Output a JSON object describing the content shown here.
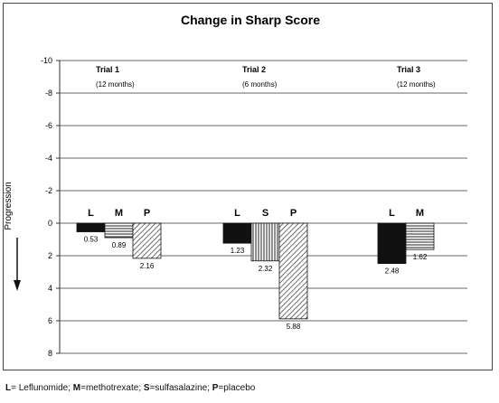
{
  "chart_data": {
    "type": "bar",
    "title": "Change in Sharp Score",
    "ylabel": "Progression",
    "ylim": [
      -10,
      8
    ],
    "y_ticks": [
      -10,
      -8,
      -6,
      -4,
      -2,
      0,
      2,
      4,
      6,
      8
    ],
    "y_inverted": true,
    "grid": true,
    "trials": [
      {
        "name": "Trial 1",
        "duration": "(12 months)",
        "bars": [
          {
            "label": "L",
            "value": 0.53,
            "value_label": "0.53",
            "fill": "solid-black"
          },
          {
            "label": "M",
            "value": 0.89,
            "value_label": "0.89",
            "fill": "horizontal-stripes"
          },
          {
            "label": "P",
            "value": 2.16,
            "value_label": "2.16",
            "fill": "diagonal-hatch"
          }
        ]
      },
      {
        "name": "Trial 2",
        "duration": "(6 months)",
        "bars": [
          {
            "label": "L",
            "value": 1.23,
            "value_label": "1.23",
            "fill": "solid-black"
          },
          {
            "label": "S",
            "value": 2.32,
            "value_label": "2.32",
            "fill": "vertical-stripes"
          },
          {
            "label": "P",
            "value": 5.88,
            "value_label": "5.88",
            "fill": "diagonal-hatch"
          }
        ]
      },
      {
        "name": "Trial 3",
        "duration": "(12 months)",
        "bars": [
          {
            "label": "L",
            "value": 2.48,
            "value_label": "2.48",
            "fill": "solid-black"
          },
          {
            "label": "M",
            "value": 1.62,
            "value_label": "1.62",
            "fill": "horizontal-stripes"
          }
        ]
      }
    ]
  },
  "footnote": {
    "l_key": "L",
    "l_text": "= Leflunomide; ",
    "m_key": "M",
    "m_text": "=methotrexate; ",
    "s_key": "S",
    "s_text": "=sulfasalazine; ",
    "p_key": "P",
    "p_text": "=placebo"
  }
}
